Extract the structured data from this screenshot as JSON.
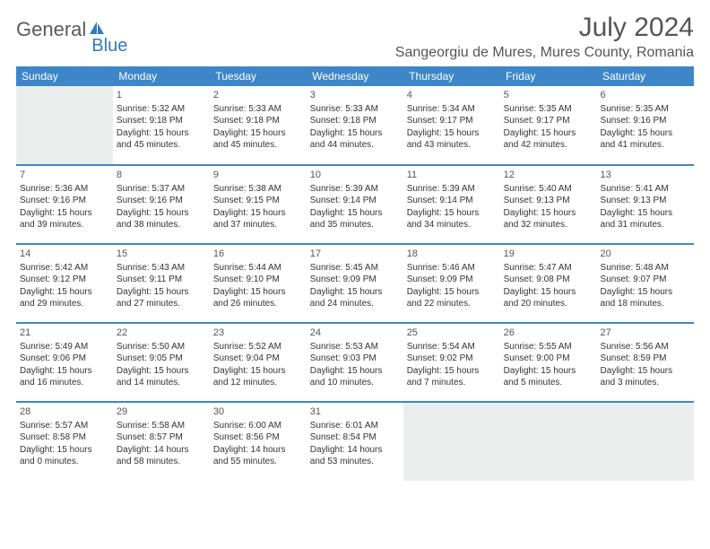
{
  "logo": {
    "word1": "General",
    "word2": "Blue"
  },
  "title": "July 2024",
  "location": "Sangeorgiu de Mures, Mures County, Romania",
  "colors": {
    "header_bg": "#3d87c9",
    "header_text": "#ffffff",
    "border": "#3d87c9",
    "text": "#333333",
    "logo_gray": "#5a5a5a",
    "logo_blue": "#2f7bbf",
    "empty_bg": "#eceded"
  },
  "weekdays": [
    "Sunday",
    "Monday",
    "Tuesday",
    "Wednesday",
    "Thursday",
    "Friday",
    "Saturday"
  ],
  "weeks": [
    [
      {
        "day": "",
        "empty": true
      },
      {
        "day": "1",
        "sunrise": "Sunrise: 5:32 AM",
        "sunset": "Sunset: 9:18 PM",
        "daylight": "Daylight: 15 hours and 45 minutes."
      },
      {
        "day": "2",
        "sunrise": "Sunrise: 5:33 AM",
        "sunset": "Sunset: 9:18 PM",
        "daylight": "Daylight: 15 hours and 45 minutes."
      },
      {
        "day": "3",
        "sunrise": "Sunrise: 5:33 AM",
        "sunset": "Sunset: 9:18 PM",
        "daylight": "Daylight: 15 hours and 44 minutes."
      },
      {
        "day": "4",
        "sunrise": "Sunrise: 5:34 AM",
        "sunset": "Sunset: 9:17 PM",
        "daylight": "Daylight: 15 hours and 43 minutes."
      },
      {
        "day": "5",
        "sunrise": "Sunrise: 5:35 AM",
        "sunset": "Sunset: 9:17 PM",
        "daylight": "Daylight: 15 hours and 42 minutes."
      },
      {
        "day": "6",
        "sunrise": "Sunrise: 5:35 AM",
        "sunset": "Sunset: 9:16 PM",
        "daylight": "Daylight: 15 hours and 41 minutes."
      }
    ],
    [
      {
        "day": "7",
        "sunrise": "Sunrise: 5:36 AM",
        "sunset": "Sunset: 9:16 PM",
        "daylight": "Daylight: 15 hours and 39 minutes."
      },
      {
        "day": "8",
        "sunrise": "Sunrise: 5:37 AM",
        "sunset": "Sunset: 9:16 PM",
        "daylight": "Daylight: 15 hours and 38 minutes."
      },
      {
        "day": "9",
        "sunrise": "Sunrise: 5:38 AM",
        "sunset": "Sunset: 9:15 PM",
        "daylight": "Daylight: 15 hours and 37 minutes."
      },
      {
        "day": "10",
        "sunrise": "Sunrise: 5:39 AM",
        "sunset": "Sunset: 9:14 PM",
        "daylight": "Daylight: 15 hours and 35 minutes."
      },
      {
        "day": "11",
        "sunrise": "Sunrise: 5:39 AM",
        "sunset": "Sunset: 9:14 PM",
        "daylight": "Daylight: 15 hours and 34 minutes."
      },
      {
        "day": "12",
        "sunrise": "Sunrise: 5:40 AM",
        "sunset": "Sunset: 9:13 PM",
        "daylight": "Daylight: 15 hours and 32 minutes."
      },
      {
        "day": "13",
        "sunrise": "Sunrise: 5:41 AM",
        "sunset": "Sunset: 9:13 PM",
        "daylight": "Daylight: 15 hours and 31 minutes."
      }
    ],
    [
      {
        "day": "14",
        "sunrise": "Sunrise: 5:42 AM",
        "sunset": "Sunset: 9:12 PM",
        "daylight": "Daylight: 15 hours and 29 minutes."
      },
      {
        "day": "15",
        "sunrise": "Sunrise: 5:43 AM",
        "sunset": "Sunset: 9:11 PM",
        "daylight": "Daylight: 15 hours and 27 minutes."
      },
      {
        "day": "16",
        "sunrise": "Sunrise: 5:44 AM",
        "sunset": "Sunset: 9:10 PM",
        "daylight": "Daylight: 15 hours and 26 minutes."
      },
      {
        "day": "17",
        "sunrise": "Sunrise: 5:45 AM",
        "sunset": "Sunset: 9:09 PM",
        "daylight": "Daylight: 15 hours and 24 minutes."
      },
      {
        "day": "18",
        "sunrise": "Sunrise: 5:46 AM",
        "sunset": "Sunset: 9:09 PM",
        "daylight": "Daylight: 15 hours and 22 minutes."
      },
      {
        "day": "19",
        "sunrise": "Sunrise: 5:47 AM",
        "sunset": "Sunset: 9:08 PM",
        "daylight": "Daylight: 15 hours and 20 minutes."
      },
      {
        "day": "20",
        "sunrise": "Sunrise: 5:48 AM",
        "sunset": "Sunset: 9:07 PM",
        "daylight": "Daylight: 15 hours and 18 minutes."
      }
    ],
    [
      {
        "day": "21",
        "sunrise": "Sunrise: 5:49 AM",
        "sunset": "Sunset: 9:06 PM",
        "daylight": "Daylight: 15 hours and 16 minutes."
      },
      {
        "day": "22",
        "sunrise": "Sunrise: 5:50 AM",
        "sunset": "Sunset: 9:05 PM",
        "daylight": "Daylight: 15 hours and 14 minutes."
      },
      {
        "day": "23",
        "sunrise": "Sunrise: 5:52 AM",
        "sunset": "Sunset: 9:04 PM",
        "daylight": "Daylight: 15 hours and 12 minutes."
      },
      {
        "day": "24",
        "sunrise": "Sunrise: 5:53 AM",
        "sunset": "Sunset: 9:03 PM",
        "daylight": "Daylight: 15 hours and 10 minutes."
      },
      {
        "day": "25",
        "sunrise": "Sunrise: 5:54 AM",
        "sunset": "Sunset: 9:02 PM",
        "daylight": "Daylight: 15 hours and 7 minutes."
      },
      {
        "day": "26",
        "sunrise": "Sunrise: 5:55 AM",
        "sunset": "Sunset: 9:00 PM",
        "daylight": "Daylight: 15 hours and 5 minutes."
      },
      {
        "day": "27",
        "sunrise": "Sunrise: 5:56 AM",
        "sunset": "Sunset: 8:59 PM",
        "daylight": "Daylight: 15 hours and 3 minutes."
      }
    ],
    [
      {
        "day": "28",
        "sunrise": "Sunrise: 5:57 AM",
        "sunset": "Sunset: 8:58 PM",
        "daylight": "Daylight: 15 hours and 0 minutes."
      },
      {
        "day": "29",
        "sunrise": "Sunrise: 5:58 AM",
        "sunset": "Sunset: 8:57 PM",
        "daylight": "Daylight: 14 hours and 58 minutes."
      },
      {
        "day": "30",
        "sunrise": "Sunrise: 6:00 AM",
        "sunset": "Sunset: 8:56 PM",
        "daylight": "Daylight: 14 hours and 55 minutes."
      },
      {
        "day": "31",
        "sunrise": "Sunrise: 6:01 AM",
        "sunset": "Sunset: 8:54 PM",
        "daylight": "Daylight: 14 hours and 53 minutes."
      },
      {
        "day": "",
        "empty": true
      },
      {
        "day": "",
        "empty": true
      },
      {
        "day": "",
        "empty": true
      }
    ]
  ]
}
